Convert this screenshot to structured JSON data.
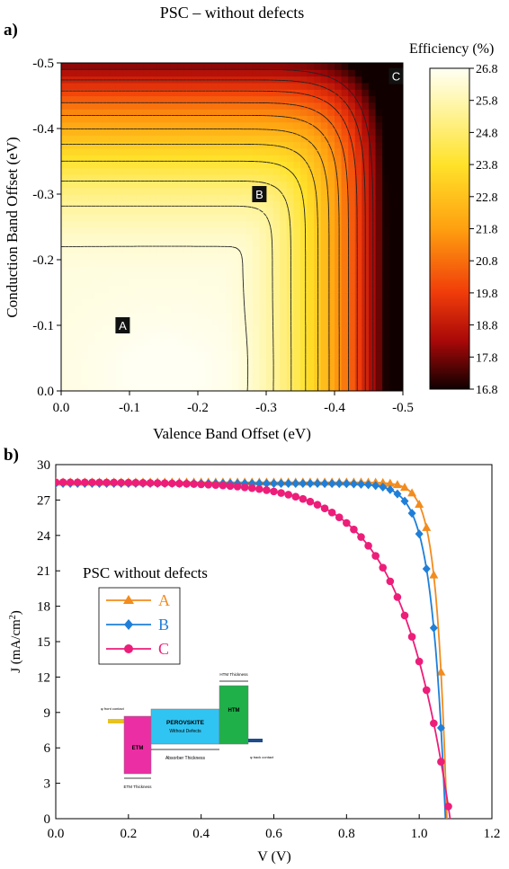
{
  "heatmap": {
    "panel_label": "a)",
    "title": "PSC – without defects",
    "xlabel": "Valence Band Offset (eV)",
    "ylabel": "Conduction Band Offset (eV)",
    "colorbar_title": "Efficiency (%)",
    "points": [
      {
        "label": "A",
        "x": -0.09,
        "y": -0.1
      },
      {
        "label": "B",
        "x": -0.29,
        "y": -0.3
      },
      {
        "label": "C",
        "x": -0.49,
        "y": -0.48
      }
    ]
  },
  "jv": {
    "panel_label": "b)",
    "xlabel": "V (V)",
    "ylabel": "J (mA/cm²)",
    "legend_title": "PSC without defects",
    "colors": {
      "A": "#f28c1e",
      "B": "#1f7fd8",
      "C": "#ec1e7a"
    },
    "inset": {
      "front_contact": "φ front contact",
      "back_contact": "φ back contact",
      "etm": "ETM",
      "perovskite": "PEROVSKITE",
      "perovskite_sub": "Without Defects",
      "htm": "HTM",
      "htm_thickness": "HTM Thickness",
      "absorber_thickness": "Absorber Thickness",
      "etm_thickness": "ETM Thickness"
    }
  },
  "chart_data": [
    {
      "type": "heatmap",
      "title": "PSC – without defects",
      "xlabel": "Valence Band Offset (eV)",
      "ylabel": "Conduction Band Offset (eV)",
      "x_ticks": [
        "0.0",
        "-0.1",
        "-0.2",
        "-0.3",
        "-0.4",
        "-0.5"
      ],
      "y_ticks": [
        "0.0",
        "-0.1",
        "-0.2",
        "-0.3",
        "-0.4",
        "-0.5"
      ],
      "xlim": [
        0,
        -0.5
      ],
      "ylim": [
        0,
        -0.5
      ],
      "colorbar": {
        "title": "Efficiency (%)",
        "ticks": [
          "26.8",
          "25.8",
          "24.8",
          "23.8",
          "22.8",
          "21.8",
          "20.8",
          "19.8",
          "18.8",
          "17.8",
          "16.8"
        ],
        "range": [
          16.8,
          26.8
        ]
      },
      "points": [
        {
          "label": "A",
          "x": -0.09,
          "y": -0.1
        },
        {
          "label": "B",
          "x": -0.29,
          "y": -0.3
        },
        {
          "label": "C",
          "x": -0.49,
          "y": -0.48
        }
      ]
    },
    {
      "type": "line",
      "xlabel": "V (V)",
      "ylabel": "J (mA/cm²)",
      "xlim": [
        0,
        1.2
      ],
      "ylim": [
        0,
        30
      ],
      "x_ticks": [
        "0.0",
        "0.2",
        "0.4",
        "0.6",
        "0.8",
        "1.0",
        "1.2"
      ],
      "y_ticks": [
        "0",
        "3",
        "6",
        "9",
        "12",
        "15",
        "18",
        "21",
        "24",
        "27",
        "30"
      ],
      "legend_title": "PSC without defects",
      "series": [
        {
          "name": "A",
          "voc": 1.076,
          "jsc": 28.5
        },
        {
          "name": "B",
          "voc": 1.072,
          "jsc": 28.4
        },
        {
          "name": "C",
          "voc": 1.085,
          "jsc": 28.5
        }
      ]
    }
  ]
}
